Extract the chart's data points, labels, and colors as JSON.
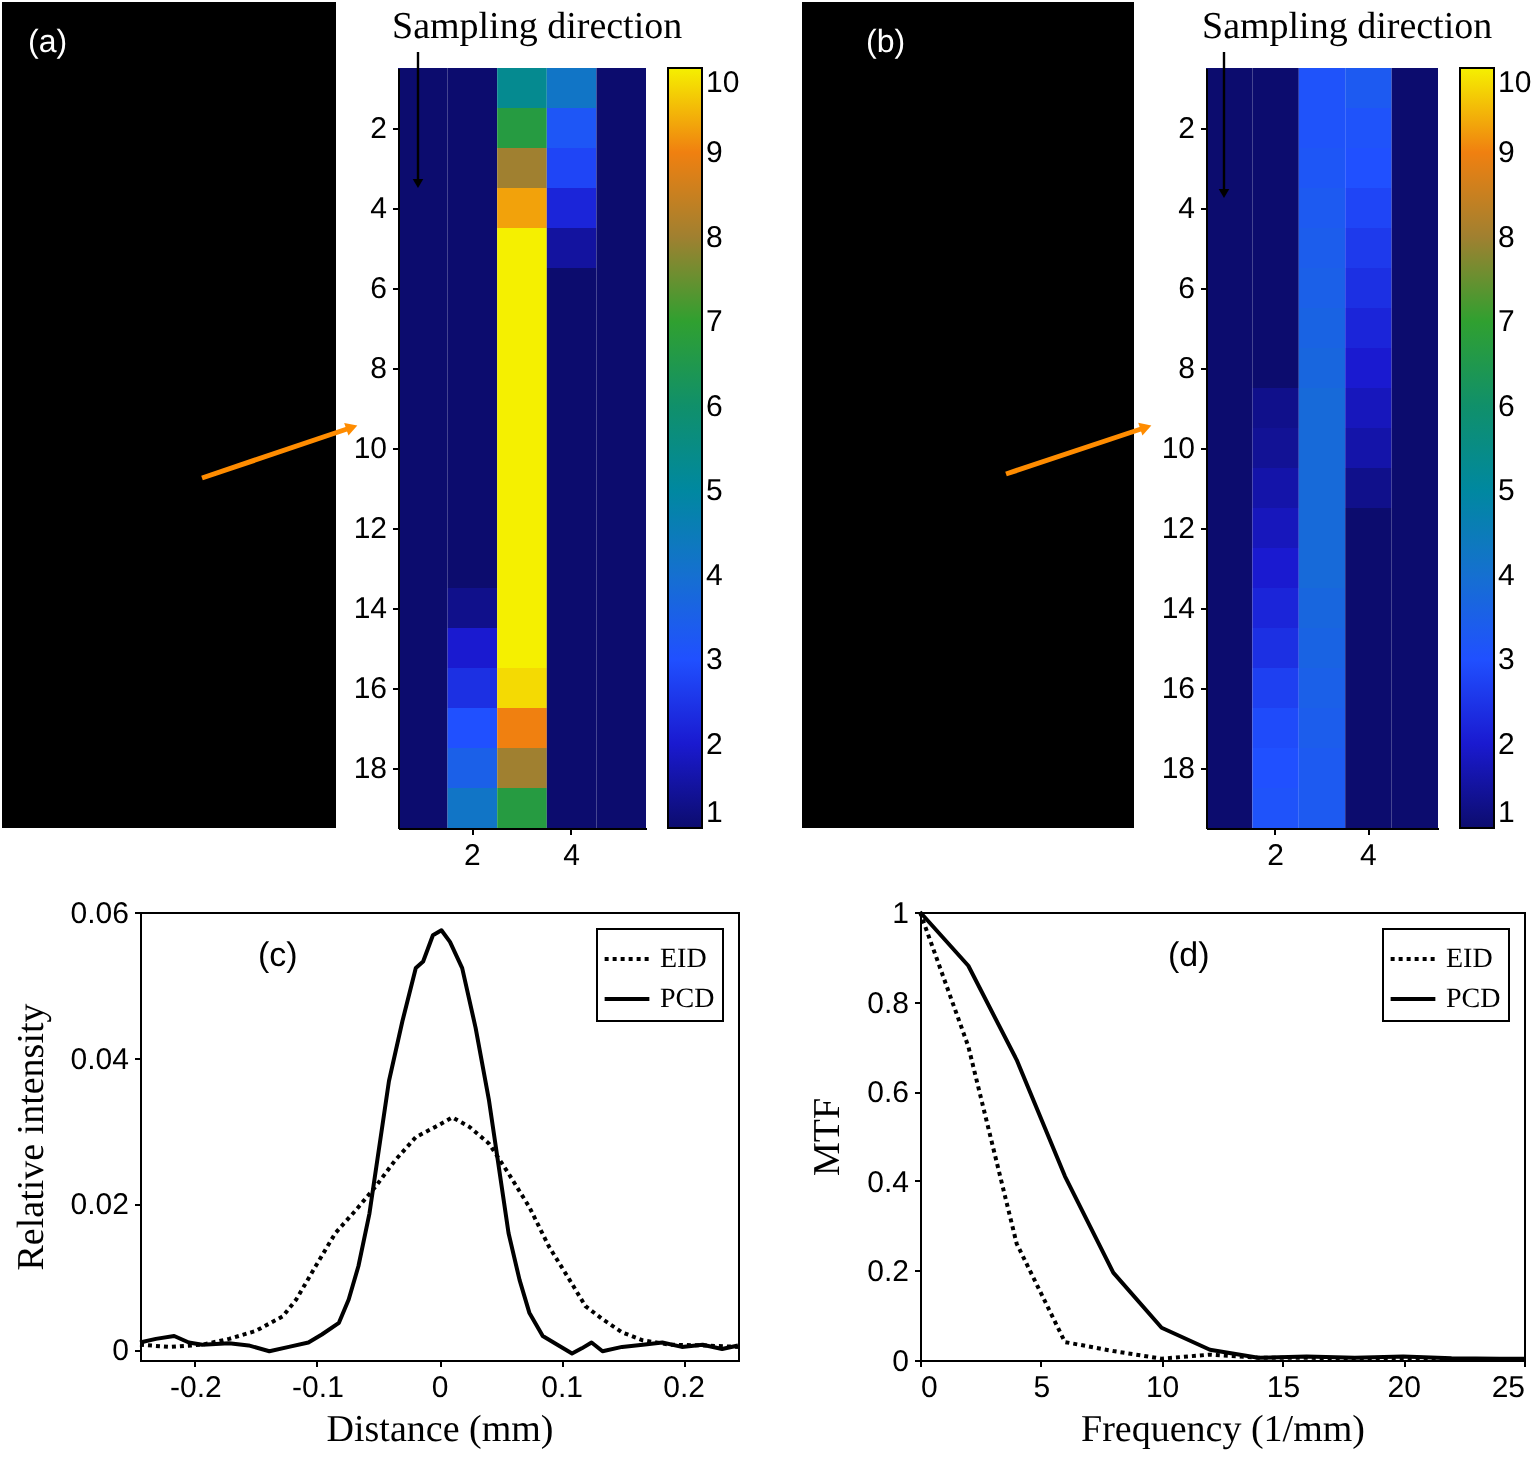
{
  "chart_data": [
    {
      "type": "heatmap",
      "categories": [
        null,
        "2",
        null,
        "4",
        null
      ],
      "y_categories": [
        null,
        "2",
        null,
        "4",
        null,
        "6",
        null,
        "8",
        null,
        "10",
        null,
        "12",
        null,
        "14",
        null,
        "16",
        null,
        "18",
        null
      ],
      "cells": [
        [
          1,
          1,
          5.3,
          4.2,
          1
        ],
        [
          1,
          1,
          6.7,
          3.2,
          1
        ],
        [
          1,
          1,
          8.0,
          2.8,
          1
        ],
        [
          1,
          1,
          9.3,
          2.2,
          1
        ],
        [
          1,
          1,
          10,
          1.5,
          1
        ],
        [
          1,
          1,
          10,
          1,
          1
        ],
        [
          1,
          1,
          10,
          1,
          1
        ],
        [
          1,
          1,
          10,
          1,
          1
        ],
        [
          1,
          1,
          10,
          1,
          1
        ],
        [
          1,
          1,
          10,
          1,
          1
        ],
        [
          1,
          1,
          10,
          1,
          1
        ],
        [
          1,
          1,
          10,
          1,
          1
        ],
        [
          1,
          1,
          10,
          1,
          1
        ],
        [
          1,
          1.3,
          10,
          1,
          1
        ],
        [
          1,
          2.0,
          10,
          1,
          1
        ],
        [
          1,
          2.4,
          9.8,
          1,
          1
        ],
        [
          1,
          3.0,
          9.0,
          1,
          1
        ],
        [
          1,
          3.5,
          8.0,
          1,
          1
        ],
        [
          1,
          4.2,
          6.7,
          1,
          1
        ]
      ],
      "clim": [
        1,
        10
      ],
      "cticks": [
        1,
        2,
        3,
        4,
        5,
        6,
        7,
        8,
        9,
        10
      ],
      "annotations": [
        "(a)",
        "Sampling direction"
      ]
    },
    {
      "type": "heatmap",
      "categories": [
        null,
        "2",
        null,
        "4",
        null
      ],
      "y_categories": [
        null,
        "2",
        null,
        "4",
        null,
        "6",
        null,
        "8",
        null,
        "10",
        null,
        "12",
        null,
        "14",
        null,
        "16",
        null,
        "18",
        null
      ],
      "cells": [
        [
          1,
          1,
          3.1,
          3.3,
          1
        ],
        [
          1,
          1,
          3.1,
          3.1,
          1
        ],
        [
          1,
          1,
          3.2,
          3.0,
          1
        ],
        [
          1,
          1,
          3.3,
          2.8,
          1
        ],
        [
          1,
          1,
          3.4,
          2.6,
          1
        ],
        [
          1,
          1,
          3.5,
          2.4,
          1
        ],
        [
          1,
          1,
          3.6,
          2.2,
          1
        ],
        [
          1,
          1,
          3.7,
          2.0,
          1
        ],
        [
          1,
          1.3,
          3.8,
          1.8,
          1
        ],
        [
          1,
          1.4,
          3.8,
          1.6,
          1
        ],
        [
          1,
          1.6,
          3.8,
          1.3,
          1
        ],
        [
          1,
          1.8,
          3.8,
          1,
          1
        ],
        [
          1,
          2.0,
          3.8,
          1,
          1
        ],
        [
          1,
          2.2,
          3.7,
          1,
          1
        ],
        [
          1,
          2.4,
          3.6,
          1,
          1
        ],
        [
          1,
          2.7,
          3.5,
          1,
          1
        ],
        [
          1,
          2.9,
          3.4,
          1,
          1
        ],
        [
          1,
          3.0,
          3.3,
          1,
          1
        ],
        [
          1,
          3.1,
          3.3,
          1,
          1
        ]
      ],
      "clim": [
        1,
        10
      ],
      "cticks": [
        1,
        2,
        3,
        4,
        5,
        6,
        7,
        8,
        9,
        10
      ],
      "annotations": [
        "(b)",
        "Sampling direction"
      ]
    },
    {
      "type": "line",
      "xlabel": "Distance (mm)",
      "ylabel": "Relative intensity",
      "xlim": [
        -0.245,
        0.245
      ],
      "xticks": [
        -0.2,
        -0.1,
        0,
        0.1,
        0.2
      ],
      "ylim": [
        -0.0015,
        0.06
      ],
      "yticks": [
        0,
        0.02,
        0.04,
        0.06
      ],
      "legend": "top right",
      "annotations": [
        "(c)"
      ],
      "series": [
        {
          "name": "EID",
          "color": "#000000",
          "line_style": "dotted",
          "x": [
            -0.245,
            -0.221,
            -0.194,
            -0.172,
            -0.15,
            -0.128,
            -0.117,
            -0.101,
            -0.085,
            -0.068,
            -0.052,
            -0.036,
            -0.019,
            -0.003,
            0.011,
            0.025,
            0.041,
            0.057,
            0.074,
            0.09,
            0.107,
            0.12,
            0.134,
            0.15,
            0.167,
            0.189,
            0.216,
            0.245
          ],
          "values": [
            0.0006,
            0.0003,
            0.0006,
            0.0014,
            0.0025,
            0.0045,
            0.0068,
            0.0114,
            0.0159,
            0.0191,
            0.0223,
            0.0259,
            0.0291,
            0.0305,
            0.0318,
            0.0305,
            0.0282,
            0.0241,
            0.0195,
            0.0141,
            0.0095,
            0.0059,
            0.0041,
            0.0023,
            0.0012,
            0.0006,
            0.0005,
            0.0003
          ]
        },
        {
          "name": "PCD",
          "color": "#000000",
          "line_style": "solid",
          "x": [
            -0.245,
            -0.232,
            -0.217,
            -0.205,
            -0.194,
            -0.172,
            -0.156,
            -0.139,
            -0.123,
            -0.107,
            -0.096,
            -0.082,
            -0.074,
            -0.066,
            -0.057,
            -0.049,
            -0.041,
            -0.03,
            -0.019,
            -0.013,
            -0.005,
            0.002,
            0.009,
            0.019,
            0.03,
            0.041,
            0.049,
            0.057,
            0.066,
            0.074,
            0.085,
            0.098,
            0.109,
            0.117,
            0.125,
            0.134,
            0.15,
            0.167,
            0.183,
            0.199,
            0.216,
            0.232,
            0.245
          ],
          "values": [
            0.0009,
            0.0014,
            0.0018,
            0.0009,
            0.0006,
            0.0008,
            0.0005,
            -0.0003,
            0.0003,
            0.0009,
            0.002,
            0.0036,
            0.0068,
            0.0114,
            0.0186,
            0.0277,
            0.0368,
            0.045,
            0.0523,
            0.0532,
            0.0568,
            0.0575,
            0.0559,
            0.0523,
            0.0441,
            0.0341,
            0.025,
            0.0159,
            0.0095,
            0.005,
            0.0018,
            0.0005,
            -0.0006,
            0.0001,
            0.0009,
            -0.0003,
            0.0003,
            0.0006,
            0.0009,
            0.0003,
            0.0006,
            0.0,
            0.0005
          ]
        }
      ]
    },
    {
      "type": "line",
      "xlabel": "Frequency (1/mm)",
      "ylabel": "MTF",
      "xlim": [
        0,
        25
      ],
      "xticks": [
        0,
        5,
        10,
        15,
        20,
        25
      ],
      "ylim": [
        0,
        1
      ],
      "yticks": [
        0,
        0.2,
        0.4,
        0.6,
        0.8,
        1
      ],
      "legend": "top right",
      "annotations": [
        "(d)"
      ],
      "series": [
        {
          "name": "EID",
          "color": "#000000",
          "line_style": "dotted",
          "x": [
            0,
            2,
            4,
            6,
            8,
            10,
            12,
            14,
            16,
            18,
            20,
            22,
            24,
            25
          ],
          "values": [
            1,
            0.7,
            0.26,
            0.04,
            0.02,
            0.003,
            0.012,
            0.005,
            0.005,
            0.003,
            0.004,
            0.002,
            0.002,
            0.002
          ]
        },
        {
          "name": "PCD",
          "color": "#000000",
          "line_style": "solid",
          "x": [
            0,
            2,
            4,
            6,
            8,
            10,
            12,
            14,
            16,
            18,
            20,
            22,
            24,
            25
          ],
          "values": [
            1,
            0.88,
            0.67,
            0.41,
            0.195,
            0.072,
            0.023,
            0.005,
            0.008,
            0.005,
            0.008,
            0.004,
            0.003,
            0.003
          ]
        }
      ]
    }
  ]
}
